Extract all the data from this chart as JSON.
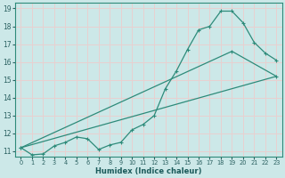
{
  "xlabel": "Humidex (Indice chaleur)",
  "background_color": "#cce8e8",
  "grid_color": "#e8d0d0",
  "line_color": "#2e8b7a",
  "xlim": [
    -0.5,
    23.5
  ],
  "ylim": [
    10.7,
    19.3
  ],
  "xticks": [
    0,
    1,
    2,
    3,
    4,
    5,
    6,
    7,
    8,
    9,
    10,
    11,
    12,
    13,
    14,
    15,
    16,
    17,
    18,
    19,
    20,
    21,
    22,
    23
  ],
  "yticks": [
    11,
    12,
    13,
    14,
    15,
    16,
    17,
    18,
    19
  ],
  "line1_x": [
    0,
    1,
    2,
    3,
    4,
    5,
    6,
    7,
    8,
    9,
    10,
    11,
    12,
    13,
    14,
    15,
    16,
    17,
    18,
    19,
    20,
    21,
    22,
    23
  ],
  "line1_y": [
    11.2,
    10.8,
    10.85,
    11.3,
    11.5,
    11.8,
    11.7,
    11.1,
    11.35,
    11.5,
    12.2,
    12.5,
    13.0,
    14.5,
    15.5,
    16.7,
    17.8,
    18.0,
    18.85,
    18.85,
    18.2,
    17.1,
    16.5,
    16.1
  ],
  "line2_x": [
    0,
    23
  ],
  "line2_y": [
    11.2,
    15.2
  ],
  "line3_x": [
    0,
    19,
    23
  ],
  "line3_y": [
    11.2,
    16.6,
    15.2
  ],
  "line_with_markers_x": [
    0,
    1,
    2,
    3,
    4,
    5,
    6,
    7,
    8,
    9,
    10,
    11,
    12,
    13,
    14,
    15,
    16,
    17,
    18,
    19,
    20,
    21,
    22,
    23
  ],
  "line_with_markers_y": [
    11.2,
    10.8,
    10.85,
    11.3,
    11.5,
    11.8,
    11.7,
    11.1,
    11.35,
    11.5,
    12.2,
    12.5,
    13.0,
    14.5,
    15.5,
    16.7,
    17.8,
    18.0,
    18.85,
    18.85,
    18.2,
    17.1,
    16.5,
    16.1
  ]
}
